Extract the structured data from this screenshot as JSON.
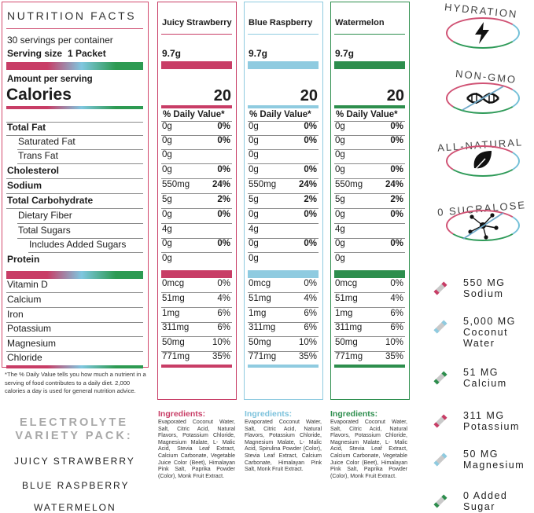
{
  "label": {
    "title": "NUTRITION FACTS",
    "servings": "30 servings per container",
    "serving_size_label": "Serving size",
    "serving_size_value": "1 Packet",
    "amount_per_serving": "Amount per serving",
    "calories_label": "Calories",
    "rows": [
      {
        "name": "Total Fat",
        "bold": true
      },
      {
        "name": "Saturated Fat",
        "bold": false
      },
      {
        "name": "Trans Fat",
        "bold": false
      },
      {
        "name": "Cholesterol",
        "bold": true
      },
      {
        "name": "Sodium",
        "bold": true
      },
      {
        "name": "Total Carbohydrate",
        "bold": true
      },
      {
        "name": "Dietary Fiber",
        "bold": false
      },
      {
        "name": "Total Sugars",
        "bold": false
      },
      {
        "name": "Includes Added Sugars",
        "bold": false
      },
      {
        "name": "Protein",
        "bold": true
      },
      {
        "name": "Vitamin D",
        "bold": false
      },
      {
        "name": "Calcium",
        "bold": false
      },
      {
        "name": "Iron",
        "bold": false
      },
      {
        "name": "Potassium",
        "bold": false
      },
      {
        "name": "Magnesium",
        "bold": false
      },
      {
        "name": "Chloride",
        "bold": false
      }
    ],
    "footnote": "*The % Daily Value tells you how much a nutrient in a serving of food contributes to a daily diet. 2,000 calories a day is used for general nutrition advice."
  },
  "flavors": [
    {
      "name": "Juicy Strawberry",
      "color": "#c83d66",
      "serving": "9.7g",
      "calories": "20",
      "dv_header": "% Daily Value*",
      "values": [
        [
          "0g",
          "0%"
        ],
        [
          "0g",
          "0%"
        ],
        [
          "0g",
          ""
        ],
        [
          "0g",
          "0%"
        ],
        [
          "550mg",
          "24%"
        ],
        [
          "5g",
          "2%"
        ],
        [
          "0g",
          "0%"
        ],
        [
          "4g",
          ""
        ],
        [
          "0g",
          "0%"
        ],
        [
          "0g",
          ""
        ],
        [
          "0mcg",
          "0%"
        ],
        [
          "51mg",
          "4%"
        ],
        [
          "1mg",
          "6%"
        ],
        [
          "311mg",
          "6%"
        ],
        [
          "50mg",
          "10%"
        ],
        [
          "771mg",
          "35%"
        ]
      ],
      "ingredients_label": "Ingredients:",
      "ingredients": "Evaporated Coconut Water, Salt, Citric Acid, Natural Flavors, Potassium Chloride, Magnesium Malate, L- Malic Acid, Stevia Leaf Extract, Calcium Carbonate, Vegetable Juice Color (Beet), Himalayan Pink Salt, Paprika Powder (Color), Monk Fruit Extract."
    },
    {
      "name": "Blue Raspberry",
      "color": "#8fcbe0",
      "serving": "9.7g",
      "calories": "20",
      "dv_header": "% Daily Value*",
      "values": [
        [
          "0g",
          "0%"
        ],
        [
          "0g",
          "0%"
        ],
        [
          "0g",
          ""
        ],
        [
          "0g",
          "0%"
        ],
        [
          "550mg",
          "24%"
        ],
        [
          "5g",
          "2%"
        ],
        [
          "0g",
          "0%"
        ],
        [
          "4g",
          ""
        ],
        [
          "0g",
          "0%"
        ],
        [
          "0g",
          ""
        ],
        [
          "0mcg",
          "0%"
        ],
        [
          "51mg",
          "4%"
        ],
        [
          "1mg",
          "6%"
        ],
        [
          "311mg",
          "6%"
        ],
        [
          "50mg",
          "10%"
        ],
        [
          "771mg",
          "35%"
        ]
      ],
      "ingredients_label": "Ingredients:",
      "ingredients": "Evaporated Coconut Water, Salt, Citric Acid, Natural Flavors, Potassium Chloride, Magnesium Malate, L- Malic Acid, Spirulina Powder (Color), Stevia Leaf Extract, Calcium Carbonate, Himalayan Pink Salt, Monk Fruit Extract."
    },
    {
      "name": "Watermelon",
      "color": "#2d8e4d",
      "serving": "9.7g",
      "calories": "20",
      "dv_header": "% Daily Value*",
      "values": [
        [
          "0g",
          "0%"
        ],
        [
          "0g",
          "0%"
        ],
        [
          "0g",
          ""
        ],
        [
          "0g",
          "0%"
        ],
        [
          "550mg",
          "24%"
        ],
        [
          "5g",
          "2%"
        ],
        [
          "0g",
          "0%"
        ],
        [
          "4g",
          ""
        ],
        [
          "0g",
          "0%"
        ],
        [
          "0g",
          ""
        ],
        [
          "0mcg",
          "0%"
        ],
        [
          "51mg",
          "4%"
        ],
        [
          "1mg",
          "6%"
        ],
        [
          "311mg",
          "6%"
        ],
        [
          "50mg",
          "10%"
        ],
        [
          "771mg",
          "35%"
        ]
      ],
      "ingredients_label": "Ingredients:",
      "ingredients": "Evaporated Coconut Water, Salt, Citric Acid, Natural Flavors, Potassium Chloride, Magnesium Malate, L- Malic Acid, Stevia Leaf Extract, Calcium Carbonate, Vegetable Juice Color (Beet), Himalayan Pink Salt, Paprika Powder (Color), Monk Fruit Extract."
    }
  ],
  "pack": {
    "title_line1": "ELECTROLYTE",
    "title_line2": "VARIETY PACK:",
    "flavors": [
      "JUICY STRAWBERRY",
      "BLUE RASPBERRY",
      "WATERMELON"
    ]
  },
  "badges": [
    {
      "label": "HYDRATION",
      "icon": "lightning-icon"
    },
    {
      "label": "NON-GMO",
      "icon": "dna-crossed-icon"
    },
    {
      "label": "ALL-NATURAL",
      "icon": "leaf-icon"
    },
    {
      "label": "0 SUCRALOSE",
      "icon": "molecule-crossed-icon"
    }
  ],
  "stats": [
    {
      "line1": "550 MG",
      "line2": "Sodium",
      "color": "#c83d66"
    },
    {
      "line1": "5,000 MG",
      "line2": "Coconut",
      "line3": "Water",
      "color": "#8fcbe0"
    },
    {
      "line1": "51 MG",
      "line2": "Calcium",
      "color": "#2d8e4d"
    },
    {
      "line1": "311 MG",
      "line2": "Potassium",
      "color": "#c83d66"
    },
    {
      "line1": "50 MG",
      "line2": "Magnesium",
      "color": "#8fcbe0"
    },
    {
      "line1": "0 Added",
      "line2": "Sugar",
      "color": "#2d8e4d"
    }
  ]
}
